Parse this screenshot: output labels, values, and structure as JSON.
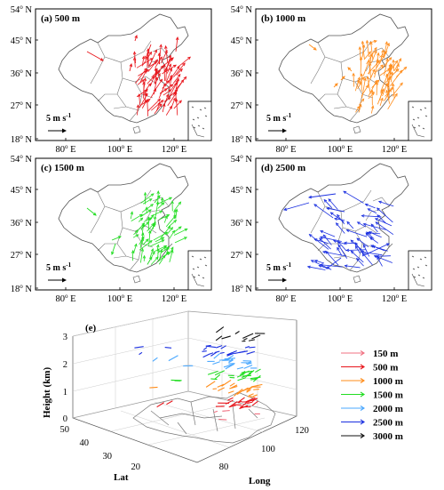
{
  "panels": [
    {
      "label": "(a) 500 m",
      "color": "#e8151b"
    },
    {
      "label": "(b) 1000 m",
      "color": "#ff8c1a"
    },
    {
      "label": "(c) 1500 m",
      "color": "#22dd22"
    },
    {
      "label": "(d) 2500 m",
      "color": "#1a2fe0"
    }
  ],
  "map_axes": {
    "lat_ticks": [
      "54",
      "45",
      "36",
      "27",
      "18"
    ],
    "lat_suffix": "N",
    "lon_ticks": [
      "80",
      "100",
      "120"
    ],
    "lon_suffix": "E",
    "degree": "o",
    "scale_label": "5 m s",
    "scale_exp": "-1"
  },
  "panel_e": {
    "label": "(e)",
    "z_label": "Height (km)",
    "z_ticks": [
      "0",
      "1",
      "2",
      "3"
    ],
    "lat_label": "Lat",
    "lat_ticks": [
      "50",
      "40",
      "30",
      "20"
    ],
    "lon_label": "Long",
    "lon_ticks": [
      "80",
      "100",
      "120"
    ]
  },
  "legend": [
    {
      "label": "150 m",
      "color": "#f07080"
    },
    {
      "label": "500 m",
      "color": "#e8151b"
    },
    {
      "label": "1000 m",
      "color": "#ff8c1a"
    },
    {
      "label": "1500 m",
      "color": "#22dd22"
    },
    {
      "label": "2000 m",
      "color": "#4aa8ff"
    },
    {
      "label": "2500 m",
      "color": "#1a2fe0"
    },
    {
      "label": "3000 m",
      "color": "#111111"
    }
  ]
}
